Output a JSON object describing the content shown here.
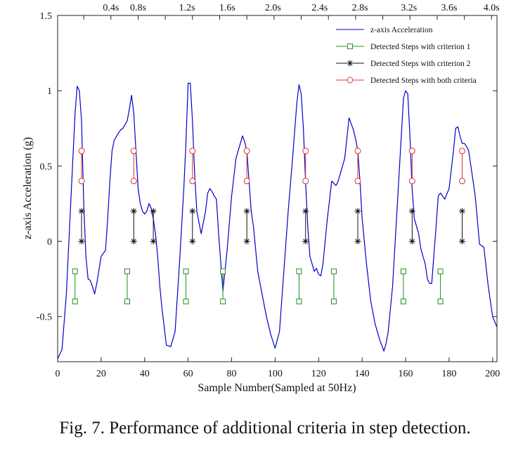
{
  "caption": "Fig. 7.   Performance of additional criteria in step detection.",
  "chart_data": {
    "type": "line",
    "xlabel": "Sample Number(Sampled at 50Hz)",
    "ylabel": "z-axis Acceleration (g)",
    "xlim": [
      0,
      202
    ],
    "ylim": [
      -0.8,
      1.5
    ],
    "x_ticks": [
      0,
      20,
      40,
      60,
      80,
      100,
      120,
      140,
      160,
      180,
      200
    ],
    "y_ticks": [
      1.5,
      1,
      0.5,
      0,
      -0.5
    ],
    "y_tick_labels": [
      "1.5",
      "1",
      "0.5",
      "0",
      "-0.5"
    ],
    "top_axis": {
      "ticks": [
        12,
        24.5,
        37,
        49.5,
        62,
        74.5,
        87,
        99.5,
        112,
        124.5,
        137,
        149.5,
        162,
        174.5,
        187,
        199.5
      ],
      "labels": [
        {
          "x": 24.5,
          "text": "0.4s"
        },
        {
          "x": 37,
          "text": "0.8s"
        },
        {
          "x": 59.5,
          "text": "1.2s"
        },
        {
          "x": 78,
          "text": "1.6s"
        },
        {
          "x": 99,
          "text": "2.0s"
        },
        {
          "x": 120.5,
          "text": "2.4s"
        },
        {
          "x": 139,
          "text": "2.8s"
        },
        {
          "x": 161.5,
          "text": "3.2s"
        },
        {
          "x": 180,
          "text": "3.6s"
        },
        {
          "x": 199.5,
          "text": "4.0s"
        }
      ]
    },
    "grid": false,
    "legend_position": "top-right",
    "legend": [
      {
        "label": "z-axis Acceleration",
        "style": "line",
        "color": "#0000cc"
      },
      {
        "label": "Detected Steps with criterion 1",
        "style": "square",
        "color": "#1f8f1f"
      },
      {
        "label": "Detected Steps with criterion 2",
        "style": "asterisk",
        "color": "#111111"
      },
      {
        "label": "Detected Steps with both criteria",
        "style": "circle",
        "color": "#e03030"
      }
    ],
    "series": [
      {
        "name": "z-axis Acceleration",
        "color": "#0000cc",
        "x": [
          0,
          2,
          4,
          6,
          8,
          9,
          10,
          11,
          12,
          13,
          14,
          15,
          16,
          17,
          18,
          20,
          21,
          22,
          23,
          24,
          25,
          26,
          28,
          29,
          30,
          32,
          33,
          34,
          35,
          36,
          37,
          38,
          39,
          40,
          41,
          42,
          43,
          44,
          45,
          46,
          47,
          48,
          50,
          52,
          54,
          56,
          58,
          59,
          60,
          61,
          62,
          63,
          64,
          66,
          68,
          69,
          70,
          71,
          72,
          73,
          74,
          76,
          78,
          80,
          82,
          84,
          85,
          86,
          87,
          88,
          89,
          90,
          92,
          94,
          96,
          98,
          100,
          102,
          104,
          106,
          108,
          110,
          111,
          112,
          113,
          114,
          115,
          116,
          117,
          118,
          119,
          120,
          121,
          122,
          124,
          126,
          128,
          129,
          130,
          132,
          134,
          136,
          137,
          138,
          139,
          140,
          142,
          144,
          146,
          148,
          150,
          151,
          152,
          154,
          156,
          158,
          159,
          160,
          161,
          162,
          163,
          164,
          165,
          166,
          167,
          168,
          169,
          170,
          171,
          172,
          174,
          175,
          176,
          177,
          178,
          180,
          182,
          183,
          184,
          185,
          186,
          187,
          188,
          189,
          190,
          192,
          194,
          196,
          198,
          200,
          202
        ],
        "values": [
          -0.78,
          -0.72,
          -0.35,
          0.25,
          0.85,
          1.03,
          1.0,
          0.8,
          0.25,
          -0.1,
          -0.25,
          -0.26,
          -0.3,
          -0.35,
          -0.28,
          -0.1,
          -0.08,
          -0.06,
          0.15,
          0.4,
          0.6,
          0.67,
          0.72,
          0.74,
          0.75,
          0.8,
          0.88,
          0.97,
          0.85,
          0.6,
          0.35,
          0.25,
          0.2,
          0.18,
          0.2,
          0.25,
          0.22,
          0.15,
          0.05,
          -0.1,
          -0.3,
          -0.45,
          -0.69,
          -0.7,
          -0.6,
          -0.15,
          0.35,
          0.65,
          1.05,
          1.05,
          0.8,
          0.45,
          0.2,
          0.05,
          0.2,
          0.32,
          0.35,
          0.33,
          0.3,
          0.28,
          0.05,
          -0.33,
          -0.05,
          0.3,
          0.55,
          0.65,
          0.7,
          0.66,
          0.6,
          0.4,
          0.2,
          0.1,
          -0.2,
          -0.35,
          -0.5,
          -0.62,
          -0.71,
          -0.6,
          -0.2,
          0.2,
          0.55,
          0.92,
          1.04,
          0.98,
          0.75,
          0.4,
          0.1,
          -0.1,
          -0.15,
          -0.2,
          -0.18,
          -0.22,
          -0.23,
          -0.15,
          0.15,
          0.4,
          0.37,
          0.4,
          0.45,
          0.55,
          0.82,
          0.74,
          0.68,
          0.6,
          0.4,
          0.15,
          -0.15,
          -0.4,
          -0.55,
          -0.65,
          -0.73,
          -0.68,
          -0.6,
          -0.3,
          0.2,
          0.7,
          0.95,
          1.0,
          0.98,
          0.7,
          0.35,
          0.15,
          0.1,
          0.05,
          -0.05,
          -0.1,
          -0.15,
          -0.25,
          -0.28,
          -0.28,
          0.1,
          0.3,
          0.32,
          0.3,
          0.28,
          0.35,
          0.6,
          0.75,
          0.76,
          0.7,
          0.65,
          0.65,
          0.63,
          0.6,
          0.5,
          0.3,
          -0.02,
          -0.04,
          -0.3,
          -0.5,
          -0.57
        ]
      },
      {
        "name": "Detected Steps with criterion 1",
        "color": "#1f8f1f",
        "marker": "square",
        "x": [
          8,
          32,
          59,
          76,
          111,
          127,
          159,
          176
        ],
        "values_top": -0.2,
        "values_bottom": -0.4
      },
      {
        "name": "Detected Steps with criterion 2",
        "color": "#111111",
        "marker": "asterisk",
        "x": [
          11,
          35,
          44,
          62,
          87,
          114,
          138,
          163,
          186
        ],
        "values_top": 0.2,
        "values_bottom": 0.0
      },
      {
        "name": "Detected Steps with both criteria",
        "color": "#e03030",
        "marker": "circle",
        "x": [
          11,
          35,
          62,
          87,
          114,
          138,
          163,
          186
        ],
        "values_top": 0.6,
        "values_bottom": 0.4
      }
    ]
  }
}
